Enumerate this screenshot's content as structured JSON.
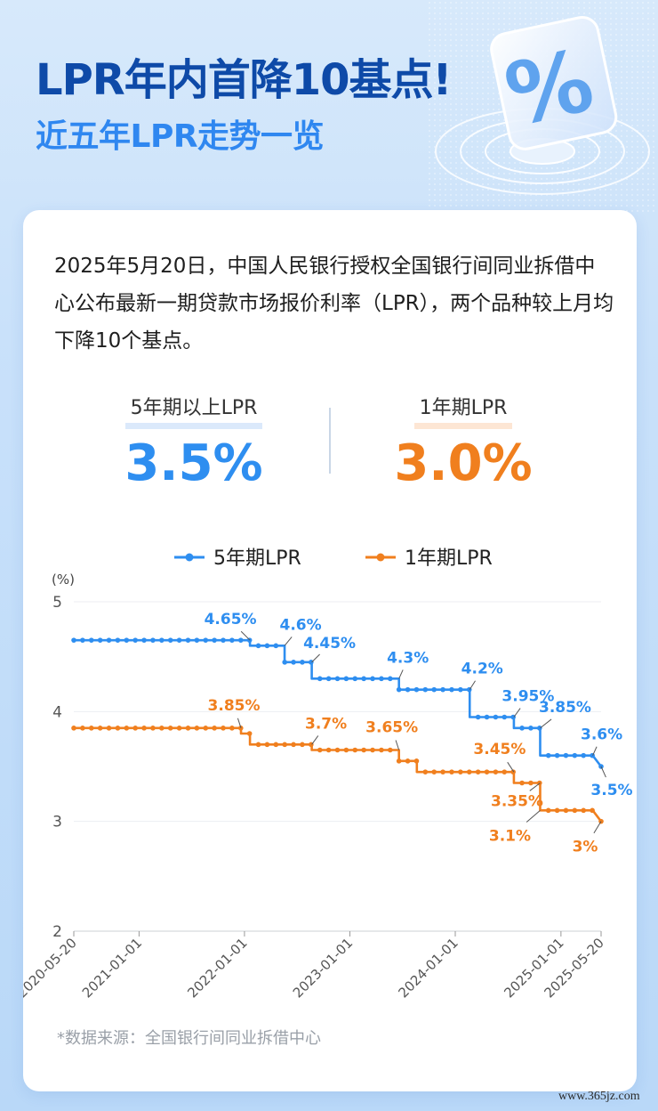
{
  "header": {
    "title": "LPR年内首降10基点!",
    "subtitle": "近五年LPR走势一览",
    "badge_symbol": "%"
  },
  "intro_text": "2025年5月20日，中国人民银行授权全国银行间同业拆借中心公布最新一期贷款市场报价利率（LPR），两个品种较上月均下降10个基点。",
  "stats": {
    "five_year": {
      "label": "5年期以上LPR",
      "value": "3.5%"
    },
    "one_year": {
      "label": "1年期LPR",
      "value": "3.0%"
    }
  },
  "source_text": "*数据来源：全国银行间同业拆借中心",
  "watermark": "www.365jz.com",
  "colors": {
    "five_year": "#2e8ef0",
    "one_year": "#f07f1e",
    "title": "#0e4aa8",
    "subtitle": "#2f87f0"
  },
  "chart_data": {
    "type": "line",
    "unit_label": "(%)",
    "ylim": [
      2,
      5
    ],
    "yticks": [
      2,
      3,
      4,
      5
    ],
    "xlim": [
      "2020-05-20",
      "2025-05-20"
    ],
    "xticks": [
      "2020-05-20",
      "2021-01-01",
      "2022-01-01",
      "2023-01-01",
      "2024-01-01",
      "2025-01-01",
      "2025-05-20"
    ],
    "grid": "horizontal",
    "legend": "top-center",
    "series": [
      {
        "name": "5年期LPR",
        "color": "#2e8ef0",
        "points": [
          [
            "2020-05-20",
            4.65
          ],
          [
            "2022-01-20",
            4.65
          ],
          [
            "2022-01-20",
            4.6
          ],
          [
            "2022-05-20",
            4.6
          ],
          [
            "2022-05-20",
            4.45
          ],
          [
            "2022-08-22",
            4.45
          ],
          [
            "2022-08-22",
            4.3
          ],
          [
            "2023-06-20",
            4.3
          ],
          [
            "2023-06-20",
            4.2
          ],
          [
            "2024-02-20",
            4.2
          ],
          [
            "2024-02-20",
            3.95
          ],
          [
            "2024-07-22",
            3.95
          ],
          [
            "2024-07-22",
            3.85
          ],
          [
            "2024-10-21",
            3.85
          ],
          [
            "2024-10-21",
            3.6
          ],
          [
            "2025-04-21",
            3.6
          ],
          [
            "2025-05-20",
            3.5
          ]
        ],
        "labels": [
          {
            "text": "4.65%",
            "date": "2022-01-20",
            "value": 4.65
          },
          {
            "text": "4.6%",
            "date": "2022-05-20",
            "value": 4.6
          },
          {
            "text": "4.45%",
            "date": "2022-08-22",
            "value": 4.45
          },
          {
            "text": "4.3%",
            "date": "2023-06-20",
            "value": 4.3
          },
          {
            "text": "4.2%",
            "date": "2024-02-20",
            "value": 4.2
          },
          {
            "text": "3.95%",
            "date": "2024-07-22",
            "value": 3.95
          },
          {
            "text": "3.85%",
            "date": "2024-10-21",
            "value": 3.85
          },
          {
            "text": "3.6%",
            "date": "2025-04-21",
            "value": 3.6
          },
          {
            "text": "3.5%",
            "date": "2025-05-20",
            "value": 3.5
          }
        ]
      },
      {
        "name": "1年期LPR",
        "color": "#f07f1e",
        "points": [
          [
            "2020-05-20",
            3.85
          ],
          [
            "2021-12-20",
            3.85
          ],
          [
            "2021-12-20",
            3.8
          ],
          [
            "2022-01-20",
            3.8
          ],
          [
            "2022-01-20",
            3.7
          ],
          [
            "2022-08-22",
            3.7
          ],
          [
            "2022-08-22",
            3.65
          ],
          [
            "2023-06-20",
            3.65
          ],
          [
            "2023-06-20",
            3.55
          ],
          [
            "2023-08-21",
            3.55
          ],
          [
            "2023-08-21",
            3.45
          ],
          [
            "2024-07-22",
            3.45
          ],
          [
            "2024-07-22",
            3.35
          ],
          [
            "2024-10-21",
            3.35
          ],
          [
            "2024-10-21",
            3.1
          ],
          [
            "2025-04-21",
            3.1
          ],
          [
            "2025-05-20",
            3.0
          ]
        ],
        "labels": [
          {
            "text": "3.85%",
            "date": "2021-12-20",
            "value": 3.85
          },
          {
            "text": "3.7%",
            "date": "2022-08-22",
            "value": 3.7
          },
          {
            "text": "3.65%",
            "date": "2023-06-20",
            "value": 3.65
          },
          {
            "text": "3.45%",
            "date": "2024-07-22",
            "value": 3.45
          },
          {
            "text": "3.35%",
            "date": "2024-10-21",
            "value": 3.35
          },
          {
            "text": "3.1%",
            "date": "2024-10-21",
            "value": 3.1
          },
          {
            "text": "3%",
            "date": "2025-05-20",
            "value": 3.0
          }
        ]
      }
    ]
  }
}
